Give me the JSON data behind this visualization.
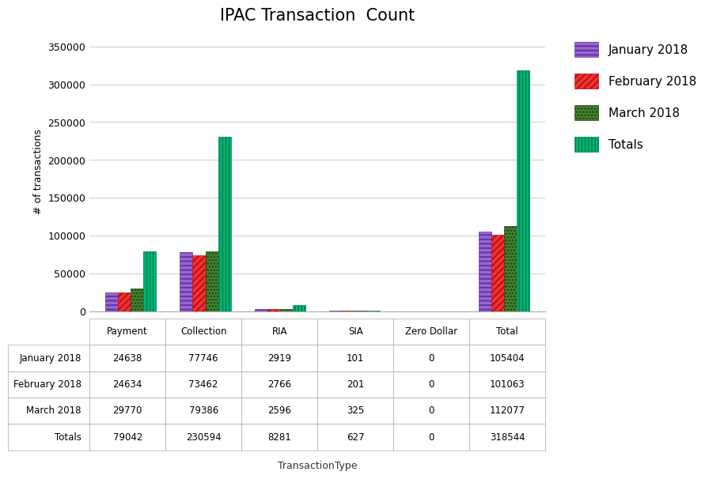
{
  "title": "IPAC Transaction  Count",
  "xlabel": "TransactionType",
  "ylabel": "# of transactions",
  "categories": [
    "Payment",
    "Collection",
    "RIA",
    "SIA",
    "Zero Dollar",
    "Total"
  ],
  "series": [
    {
      "label": "January 2018",
      "values": [
        24638,
        77746,
        2919,
        101,
        0,
        105404
      ],
      "facecolor": "#9966CC",
      "hatch": "---",
      "edgecolor": "#6633AA"
    },
    {
      "label": "February 2018",
      "values": [
        24634,
        73462,
        2766,
        201,
        0,
        101063
      ],
      "facecolor": "#EE3333",
      "hatch": "////",
      "edgecolor": "#BB1111"
    },
    {
      "label": "March 2018",
      "values": [
        29770,
        79386,
        2596,
        325,
        0,
        112077
      ],
      "facecolor": "#448833",
      "hatch": "....",
      "edgecolor": "#224411"
    },
    {
      "label": "Totals",
      "values": [
        79042,
        230594,
        8281,
        627,
        0,
        318544
      ],
      "facecolor": "#00BB77",
      "hatch": "||||",
      "edgecolor": "#008855"
    }
  ],
  "ylim": [
    0,
    370000
  ],
  "yticks": [
    0,
    50000,
    100000,
    150000,
    200000,
    250000,
    300000,
    350000
  ],
  "table_rows": [
    [
      "January 2018",
      "24638",
      "77746",
      "2919",
      "101",
      "0",
      "105404"
    ],
    [
      "February 2018",
      "24634",
      "73462",
      "2766",
      "201",
      "0",
      "101063"
    ],
    [
      "March 2018",
      "29770",
      "79386",
      "2596",
      "325",
      "0",
      "112077"
    ],
    [
      "Totals",
      "79042",
      "230594",
      "8281",
      "627",
      "0",
      "318544"
    ]
  ],
  "row_icon_colors": [
    "#9966CC",
    "#EE3333",
    "#448833",
    "#00BB77"
  ],
  "row_icon_hatches": [
    "---",
    "////",
    "....",
    "||||"
  ],
  "row_icon_edgecolors": [
    "#6633AA",
    "#BB1111",
    "#224411",
    "#008855"
  ],
  "background_color": "#FFFFFF",
  "grid_color": "#CCCCCC",
  "title_fontsize": 15,
  "axis_fontsize": 9,
  "legend_fontsize": 11
}
